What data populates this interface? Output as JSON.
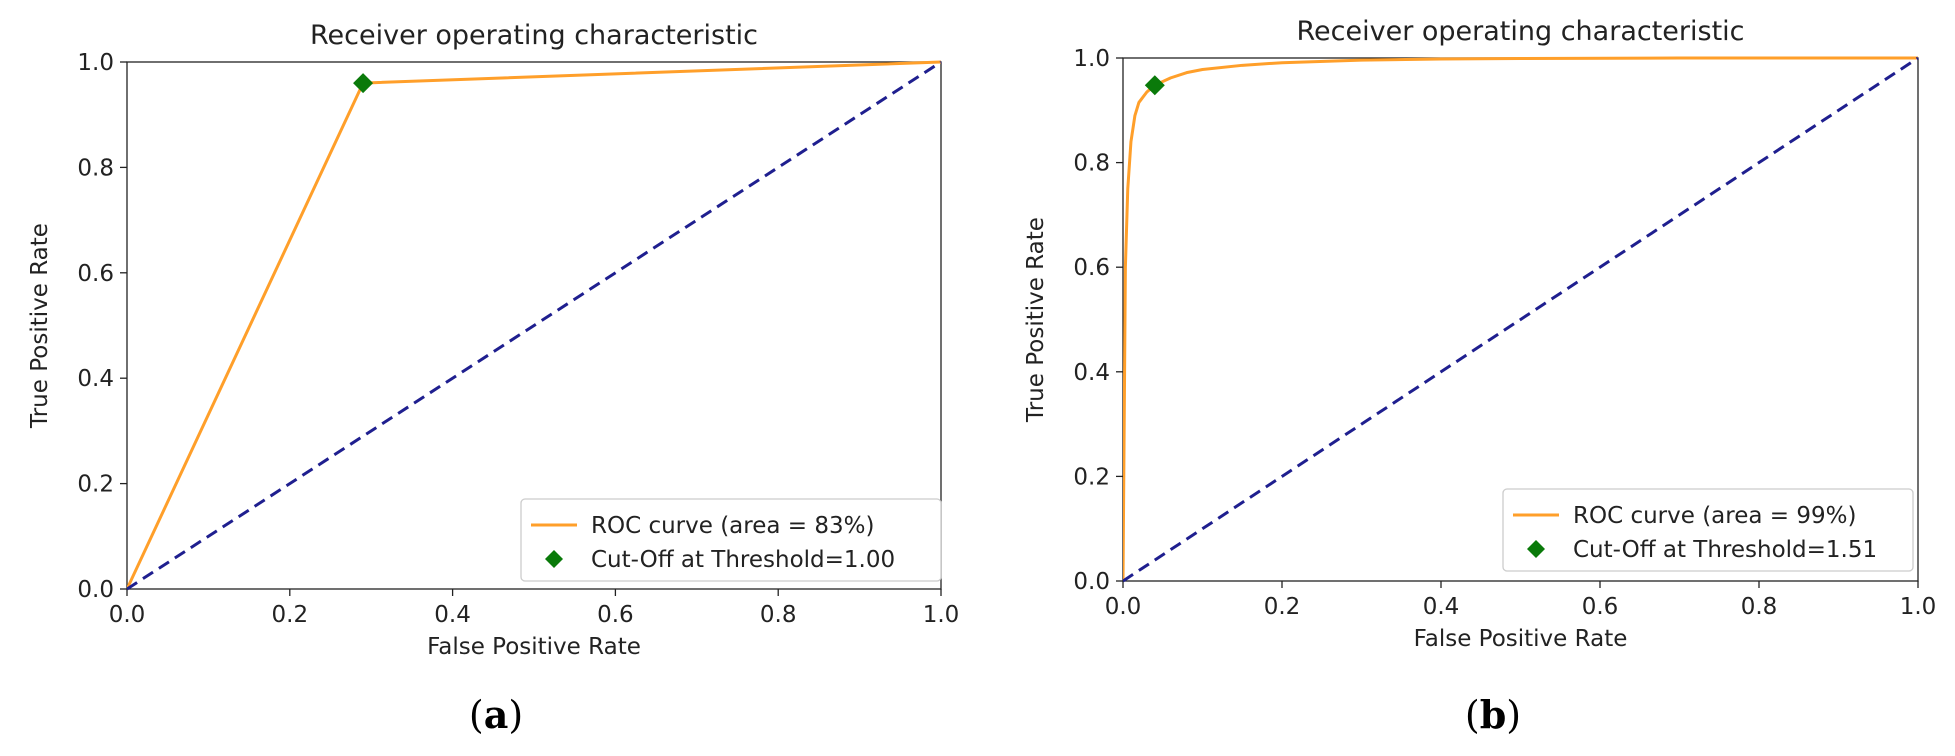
{
  "chart_data": [
    {
      "type": "line",
      "panel_label": "(a)",
      "title": "Receiver operating characteristic",
      "xlabel": "False Positive Rate",
      "ylabel": "True Positive Rate",
      "xlim": [
        0.0,
        1.0
      ],
      "ylim": [
        0.0,
        1.0
      ],
      "x_ticks": [
        "0.0",
        "0.2",
        "0.4",
        "0.6",
        "0.8",
        "1.0"
      ],
      "y_ticks": [
        "0.0",
        "0.2",
        "0.4",
        "0.6",
        "0.8",
        "1.0"
      ],
      "grid": false,
      "legend_position": "lower-right",
      "series": [
        {
          "name": "ROC curve (area = 83%)",
          "color": "#ff9f2a",
          "style": "solid",
          "x": [
            0.0,
            0.29,
            1.0
          ],
          "y": [
            0.0,
            0.96,
            1.0
          ]
        },
        {
          "color": "#1f1f8f",
          "style": "dashed",
          "x": [
            0.0,
            1.0
          ],
          "y": [
            0.0,
            1.0
          ]
        }
      ],
      "marker": {
        "name": "Cut-Off at Threshold=1.00",
        "color": "#0a7a0a",
        "shape": "diamond",
        "x": 0.29,
        "y": 0.96
      }
    },
    {
      "type": "line",
      "panel_label": "(b)",
      "title": "Receiver operating characteristic",
      "xlabel": "False Positive Rate",
      "ylabel": "True Positive Rate",
      "xlim": [
        0.0,
        1.0
      ],
      "ylim": [
        0.0,
        1.0
      ],
      "x_ticks": [
        "0.0",
        "0.2",
        "0.4",
        "0.6",
        "0.8",
        "1.0"
      ],
      "y_ticks": [
        "0.0",
        "0.2",
        "0.4",
        "0.6",
        "0.8",
        "1.0"
      ],
      "grid": false,
      "legend_position": "lower-right",
      "series": [
        {
          "name": "ROC curve (area = 99%)",
          "color": "#ff9f2a",
          "style": "solid",
          "x": [
            0.0,
            0.003,
            0.006,
            0.01,
            0.015,
            0.02,
            0.03,
            0.04,
            0.06,
            0.08,
            0.1,
            0.15,
            0.2,
            0.3,
            0.4,
            0.5,
            0.7,
            1.0
          ],
          "y": [
            0.0,
            0.6,
            0.75,
            0.84,
            0.89,
            0.915,
            0.935,
            0.948,
            0.962,
            0.972,
            0.978,
            0.986,
            0.991,
            0.996,
            0.998,
            0.999,
            1.0,
            1.0
          ]
        },
        {
          "color": "#1f1f8f",
          "style": "dashed",
          "x": [
            0.0,
            1.0
          ],
          "y": [
            0.0,
            1.0
          ]
        }
      ],
      "marker": {
        "name": "Cut-Off at Threshold=1.51",
        "color": "#0a7a0a",
        "shape": "diamond",
        "x": 0.04,
        "y": 0.948
      }
    }
  ]
}
